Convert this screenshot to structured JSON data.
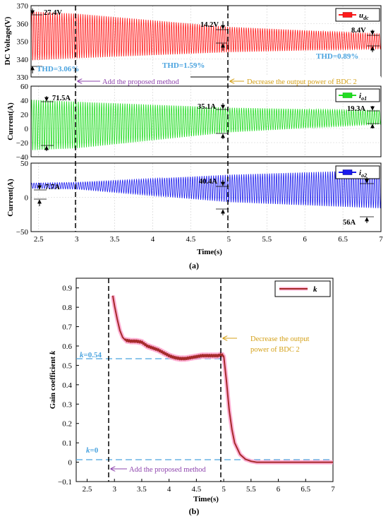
{
  "chart_data": [
    {
      "type": "line",
      "panel": "(a) top",
      "ylabel": "DC Voltage(V)",
      "ylim": [
        330,
        370
      ],
      "yticks": [
        "330",
        "340",
        "350",
        "360",
        "370"
      ],
      "xlim": [
        2.4,
        7
      ],
      "series": [
        {
          "name": "u_dc",
          "legend_main": "u",
          "legend_sub": "dc",
          "x": [
            2.4,
            3.0,
            5.0,
            7.0
          ],
          "center": [
            353,
            353,
            351,
            350
          ],
          "amplitude": [
            13.7,
            12.5,
            7.1,
            4.2
          ]
        }
      ],
      "annotations": {
        "a1": "27.4V",
        "a2": "14.2V",
        "a3": "8.4V",
        "thd1": "THD=3.06%",
        "thd2": "THD=1.59%",
        "thd3": "THD=0.89%"
      }
    },
    {
      "type": "line",
      "panel": "(a) middle",
      "ylabel": "Current(A)",
      "ylim": [
        -40,
        60
      ],
      "yticks": [
        "−40",
        "−20",
        "0",
        "20",
        "40",
        "60"
      ],
      "xlim": [
        2.4,
        7
      ],
      "series": [
        {
          "name": "i_o1",
          "legend_main": "i",
          "legend_sub": "o1",
          "x": [
            2.4,
            3.0,
            5.0,
            7.0
          ],
          "center": [
            5,
            5,
            12,
            16
          ],
          "amplitude": [
            35.8,
            33,
            17.5,
            9.6
          ]
        }
      ],
      "annotations": {
        "a1": "71.5A",
        "a2": "35.1A",
        "a3": "19.3A"
      }
    },
    {
      "type": "line",
      "panel": "(a) bottom",
      "ylabel": "Current(A)",
      "ylim": [
        -50,
        50
      ],
      "yticks": [
        "−50",
        "0",
        "50"
      ],
      "xlim": [
        2.4,
        7
      ],
      "xticks": [
        "2.5",
        "3",
        "3.5",
        "4",
        "4.5",
        "5",
        "5.5",
        "6",
        "6.5",
        "7"
      ],
      "xlabel": "Time(s)",
      "series": [
        {
          "name": "i_o2",
          "legend_main": "i",
          "legend_sub": "o2",
          "x": [
            2.4,
            3.0,
            5.0,
            7.0
          ],
          "center": [
            17,
            17,
            13,
            12
          ],
          "amplitude": [
            3.9,
            5,
            20,
            28
          ]
        }
      ],
      "annotations": {
        "a1": "7.7A",
        "a2": "40.4A",
        "a3": "56A"
      }
    },
    {
      "type": "line",
      "panel": "(b)",
      "ylabel": "Gain coefficient k",
      "ylabel_main": "Gain coefficient ",
      "ylabel_var": "k",
      "xlabel": "Time(s)",
      "xlim": [
        2.3,
        7
      ],
      "ylim": [
        -0.1,
        0.95
      ],
      "yticks": [
        "−0.1",
        "0",
        "0.1",
        "0.2",
        "0.3",
        "0.4",
        "0.5",
        "0.6",
        "0.7",
        "0.8",
        "0.9"
      ],
      "xticks": [
        "2.5",
        "3",
        "3.5",
        "4",
        "4.5",
        "5",
        "5.5",
        "6",
        "6.5",
        "7"
      ],
      "series": [
        {
          "name": "k",
          "x": [
            2.97,
            3.0,
            3.05,
            3.1,
            3.15,
            3.2,
            3.3,
            3.4,
            3.5,
            3.6,
            3.7,
            3.8,
            3.9,
            4.0,
            4.1,
            4.2,
            4.3,
            4.4,
            4.5,
            4.6,
            4.7,
            4.8,
            4.9,
            4.95,
            5.0,
            5.05,
            5.1,
            5.15,
            5.2,
            5.3,
            5.4,
            5.5,
            5.6,
            6.0,
            6.5,
            7.0
          ],
          "y": [
            0.86,
            0.81,
            0.74,
            0.68,
            0.645,
            0.63,
            0.625,
            0.625,
            0.62,
            0.6,
            0.59,
            0.58,
            0.565,
            0.55,
            0.54,
            0.535,
            0.535,
            0.54,
            0.545,
            0.55,
            0.55,
            0.55,
            0.55,
            0.555,
            0.55,
            0.42,
            0.27,
            0.17,
            0.1,
            0.04,
            0.015,
            0.005,
            0.0,
            0.0,
            0.0,
            0.0
          ]
        }
      ],
      "annotations": {
        "k054": "k=0.54",
        "k054_var": "k",
        "k054_val": "=0.54",
        "k0": "k=0",
        "k0_var": "k",
        "k0_val": "=0"
      }
    }
  ],
  "labels": {
    "add_method": "Add the proposed method",
    "decrease_power": "Decrease  the output power of BDC 2",
    "decrease_power_l1": "Decrease  the output",
    "decrease_power_l2": "power of BDC 2",
    "caption_a": "(a)",
    "caption_b": "(b)"
  },
  "colors": {
    "u_dc": "#ff1a1a",
    "i_o1": "#22dd22",
    "i_o2": "#1a1aee",
    "k": "#a52a2a",
    "k_glow": "#ff9ecb",
    "annotation_blue": "#4aa3df",
    "annotation_purple": "#8e44ad",
    "annotation_gold": "#d4a017"
  }
}
